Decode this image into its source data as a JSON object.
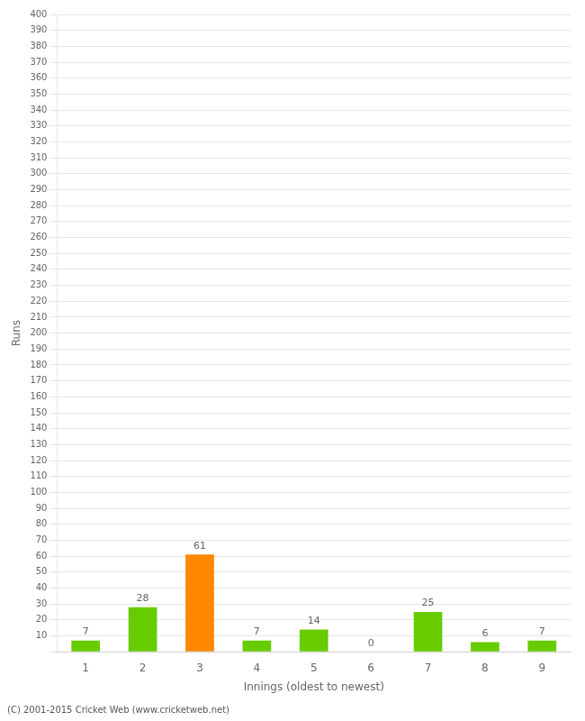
{
  "chart_data": {
    "type": "bar",
    "categories": [
      "1",
      "2",
      "3",
      "4",
      "5",
      "6",
      "7",
      "8",
      "9"
    ],
    "values": [
      7,
      28,
      61,
      7,
      14,
      0,
      25,
      6,
      7
    ],
    "colors": [
      "#66cc00",
      "#66cc00",
      "#ff8800",
      "#66cc00",
      "#66cc00",
      "#66cc00",
      "#66cc00",
      "#66cc00",
      "#66cc00"
    ],
    "xlabel": "Innings (oldest to newest)",
    "ylabel": "Runs",
    "ylim": [
      0,
      400
    ],
    "yticks": [
      {
        "value": 0,
        "label": ""
      },
      10,
      20,
      30,
      40,
      50,
      60,
      70,
      80,
      90,
      100,
      110,
      120,
      130,
      140,
      150,
      160,
      170,
      180,
      190,
      200,
      210,
      220,
      230,
      240,
      250,
      260,
      270,
      280,
      290,
      300,
      310,
      320,
      330,
      340,
      350,
      360,
      370,
      380,
      390,
      400
    ],
    "grid": true,
    "data_labels": true,
    "footer": "(C) 2001-2015 Cricket Web (www.cricketweb.net)"
  }
}
